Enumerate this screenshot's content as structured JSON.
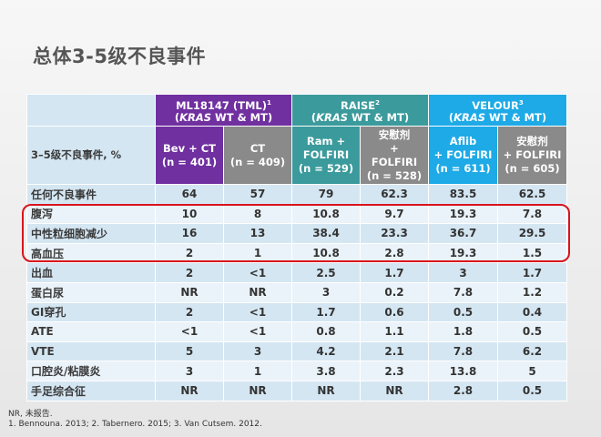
{
  "title": "总体3-5级不良事件",
  "header": {
    "groups": [
      {
        "name": "ML18147 (TML)",
        "sup": "1",
        "sub_italic": "KRAS",
        "sub_rest": " WT & MT)"
      },
      {
        "name": "RAISE",
        "sup": "2",
        "sub_italic": "KRAS",
        "sub_rest": " WT & MT)"
      },
      {
        "name": "VELOUR",
        "sup": "3",
        "sub_italic": "KRAS",
        "sub_rest": " WT & MT)"
      }
    ],
    "row_label": "3–5级不良事件, %",
    "arms": [
      {
        "l1": "Bev + CT",
        "l2": "(n = 401)"
      },
      {
        "l1": "CT",
        "l2": "(n = 409)"
      },
      {
        "l1": "Ram +",
        "l2": "FOLFIRI",
        "l3": "(n = 529)"
      },
      {
        "l1": "安慰剂",
        "l2": "+",
        "l3": "FOLFIRI",
        "l4": "(n = 528)"
      },
      {
        "l1": "Aflib",
        "l2": "+ FOLFIRI",
        "l3": "(n = 611)"
      },
      {
        "l1": "安慰剂",
        "l2": "+ FOLFIRI",
        "l3": "(n = 605)"
      }
    ]
  },
  "rows": [
    {
      "name": "任何不良事件",
      "values": [
        "64",
        "57",
        "79",
        "62.3",
        "83.5",
        "62.5"
      ]
    },
    {
      "name": "腹泻",
      "values": [
        "10",
        "8",
        "10.8",
        "9.7",
        "19.3",
        "7.8"
      ]
    },
    {
      "name": "中性粒细胞减少",
      "values": [
        "16",
        "13",
        "38.4",
        "23.3",
        "36.7",
        "29.5"
      ]
    },
    {
      "name": "高血压",
      "values": [
        "2",
        "1",
        "10.8",
        "2.8",
        "19.3",
        "1.5"
      ]
    },
    {
      "name": "出血",
      "values": [
        "2",
        "<1",
        "2.5",
        "1.7",
        "3",
        "1.7"
      ]
    },
    {
      "name": "蛋白尿",
      "values": [
        "NR",
        "NR",
        "3",
        "0.2",
        "7.8",
        "1.2"
      ]
    },
    {
      "name": "GI穿孔",
      "values": [
        "2",
        "<1",
        "1.7",
        "0.6",
        "0.5",
        "0.4"
      ]
    },
    {
      "name": "ATE",
      "values": [
        "<1",
        "<1",
        "0.8",
        "1.1",
        "1.8",
        "0.5"
      ]
    },
    {
      "name": "VTE",
      "values": [
        "5",
        "3",
        "4.2",
        "2.1",
        "7.8",
        "6.2"
      ]
    },
    {
      "name": "口腔炎/粘膜炎",
      "values": [
        "3",
        "1",
        "3.8",
        "2.3",
        "13.8",
        "5"
      ]
    },
    {
      "name": "手足综合征",
      "values": [
        "NR",
        "NR",
        "NR",
        "NR",
        "2.8",
        "0.5"
      ]
    }
  ],
  "footnotes": {
    "note": "NR, 未报告.",
    "refs": "1. Bennouna. 2013; 2. Tabernero. 2015; 3. Van Cutsem. 2012."
  },
  "colors": {
    "ml18147": "#7030a0",
    "raise": "#3b9a9c",
    "velour": "#1eaae6",
    "arm_gray": "#8a8a8a",
    "highlight": "#d8141d"
  }
}
